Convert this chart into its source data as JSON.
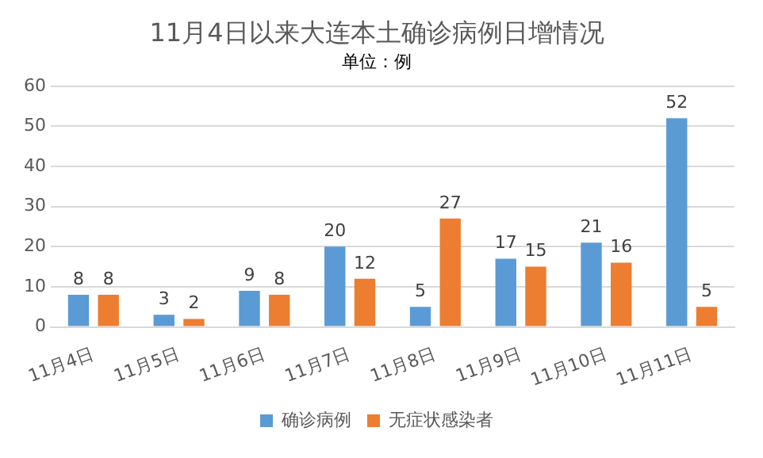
{
  "chart_data": {
    "type": "bar",
    "title": "11月4日以来大连本土确诊病例日增情况",
    "subtitle": "单位：例",
    "categories": [
      "11月4日",
      "11月5日",
      "11月6日",
      "11月7日",
      "11月8日",
      "11月9日",
      "11月10日",
      "11月11日"
    ],
    "series": [
      {
        "name": "确诊病例",
        "color": "#5b9bd5",
        "values": [
          8,
          3,
          9,
          20,
          5,
          17,
          21,
          52
        ]
      },
      {
        "name": "无症状感染者",
        "color": "#ed7d31",
        "values": [
          8,
          2,
          8,
          12,
          27,
          15,
          16,
          5
        ]
      }
    ],
    "ylim": [
      0,
      60
    ],
    "yticks": [
      0,
      10,
      20,
      30,
      40,
      50,
      60
    ],
    "grid": "y",
    "legend": "bottom",
    "data_labels": true
  }
}
